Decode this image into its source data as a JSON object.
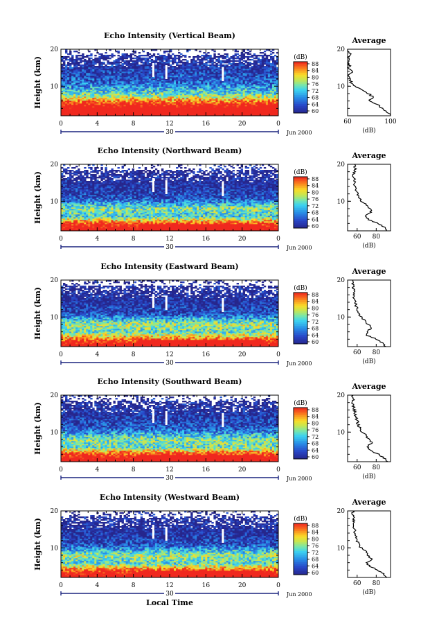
{
  "chart_data": [
    {
      "type": "heatmap",
      "title": "Echo Intensity (Vertical Beam)",
      "ylabel": "Height (km)",
      "xticks": [
        "0",
        "4",
        "8",
        "12",
        "16",
        "20",
        "0"
      ],
      "ylim": [
        2,
        20
      ],
      "yticks": [
        "10",
        "20"
      ],
      "colorbar": {
        "unit": "(dB)",
        "ticks": [
          "88",
          "84",
          "80",
          "76",
          "72",
          "68",
          "64",
          "60"
        ],
        "range": [
          60,
          88
        ]
      },
      "date_label": "30",
      "date_suffix": "Jun 2000",
      "layers_dB": {
        "heights": [
          2,
          5,
          8,
          11,
          14,
          17,
          20
        ],
        "values": [
          100,
          90,
          74,
          66,
          63,
          61,
          60
        ]
      },
      "average": {
        "title": "Average",
        "xlabel": "(dB)",
        "xticks": [
          "60",
          "100"
        ],
        "xlim": [
          60,
          100
        ],
        "yticks": [
          "10",
          "20"
        ],
        "heights": [
          2,
          3,
          4,
          5,
          6,
          7,
          8,
          9,
          10,
          11,
          12,
          13,
          14,
          15,
          16,
          17,
          18,
          19,
          20
        ],
        "values": [
          100,
          97,
          92,
          88,
          80,
          84,
          79,
          73,
          66,
          63,
          63,
          61,
          64,
          61,
          62,
          60,
          61,
          62,
          61
        ]
      }
    },
    {
      "type": "heatmap",
      "title": "Echo Intensity (Northward Beam)",
      "ylabel": "Height (km)",
      "xticks": [
        "0",
        "4",
        "8",
        "12",
        "16",
        "20",
        "0"
      ],
      "ylim": [
        2,
        20
      ],
      "yticks": [
        "10",
        "20"
      ],
      "colorbar": {
        "unit": "(dB)",
        "ticks": [
          "88",
          "84",
          "80",
          "76",
          "72",
          "68",
          "64",
          "60"
        ],
        "range": [
          60,
          88
        ]
      },
      "date_label": "30",
      "date_suffix": "Jun 2000",
      "layers_dB": {
        "heights": [
          2,
          4,
          6,
          8,
          11,
          14,
          17,
          20
        ],
        "values": [
          95,
          88,
          72,
          76,
          64,
          61,
          60,
          60
        ]
      },
      "average": {
        "title": "Average",
        "xlabel": "(dB)",
        "xticks": [
          "60",
          "80"
        ],
        "xlim": [
          50,
          95
        ],
        "yticks": [
          "10",
          "20"
        ],
        "heights": [
          2,
          3,
          4,
          5,
          6,
          7,
          8,
          9,
          10,
          11,
          12,
          13,
          14,
          15,
          16,
          17,
          18,
          19,
          20
        ],
        "values": [
          90,
          88,
          82,
          72,
          68,
          75,
          73,
          70,
          64,
          62,
          60,
          59,
          58,
          57,
          57,
          56,
          57,
          58,
          57
        ]
      }
    },
    {
      "type": "heatmap",
      "title": "Echo Intensity (Eastward Beam)",
      "ylabel": "Height (km)",
      "xticks": [
        "0",
        "4",
        "8",
        "12",
        "16",
        "20",
        "0"
      ],
      "ylim": [
        2,
        20
      ],
      "yticks": [
        "10",
        "20"
      ],
      "colorbar": {
        "unit": "(dB)",
        "ticks": [
          "88",
          "84",
          "80",
          "76",
          "72",
          "68",
          "64",
          "60"
        ],
        "range": [
          60,
          88
        ]
      },
      "date_label": "30",
      "date_suffix": "Jun 2000",
      "layers_dB": {
        "heights": [
          2,
          4,
          6,
          8,
          11,
          14,
          17,
          20
        ],
        "values": [
          95,
          86,
          74,
          77,
          64,
          61,
          60,
          60
        ]
      },
      "average": {
        "title": "Average",
        "xlabel": "(dB)",
        "xticks": [
          "60",
          "80"
        ],
        "xlim": [
          50,
          95
        ],
        "yticks": [
          "10",
          "20"
        ],
        "heights": [
          2,
          3,
          4,
          5,
          6,
          7,
          8,
          9,
          10,
          11,
          12,
          13,
          14,
          15,
          16,
          17,
          18,
          19,
          20
        ],
        "values": [
          90,
          87,
          81,
          71,
          70,
          75,
          72,
          68,
          64,
          62,
          60,
          59,
          58,
          57,
          56,
          57,
          56,
          55,
          56
        ]
      }
    },
    {
      "type": "heatmap",
      "title": "Echo Intensity (Southward Beam)",
      "ylabel": "Height (km)",
      "xticks": [
        "0",
        "4",
        "8",
        "12",
        "16",
        "20",
        "0"
      ],
      "ylim": [
        2,
        20
      ],
      "yticks": [
        "10",
        "20"
      ],
      "colorbar": {
        "unit": "(dB)",
        "ticks": [
          "88",
          "84",
          "80",
          "76",
          "72",
          "68",
          "64",
          "60"
        ],
        "range": [
          60,
          88
        ]
      },
      "date_label": "30",
      "date_suffix": "Jun 2000",
      "layers_dB": {
        "heights": [
          2,
          4,
          6,
          8,
          11,
          14,
          17,
          20
        ],
        "values": [
          95,
          88,
          74,
          76,
          65,
          62,
          60,
          60
        ]
      },
      "average": {
        "title": "Average",
        "xlabel": "(dB)",
        "xticks": [
          "60",
          "80"
        ],
        "xlim": [
          50,
          95
        ],
        "yticks": [
          "10",
          "20"
        ],
        "heights": [
          2,
          3,
          4,
          5,
          6,
          7,
          8,
          9,
          10,
          11,
          12,
          13,
          14,
          15,
          16,
          17,
          18,
          19,
          20
        ],
        "values": [
          92,
          88,
          83,
          74,
          70,
          76,
          72,
          70,
          65,
          63,
          61,
          60,
          59,
          58,
          57,
          56,
          55,
          56,
          55
        ]
      }
    },
    {
      "type": "heatmap",
      "title": "Echo Intensity (Westward Beam)",
      "ylabel": "Height (km)",
      "xticks": [
        "0",
        "4",
        "8",
        "12",
        "16",
        "20",
        "0"
      ],
      "ylim": [
        2,
        20
      ],
      "yticks": [
        "10",
        "20"
      ],
      "colorbar": {
        "unit": "(dB)",
        "ticks": [
          "88",
          "84",
          "80",
          "76",
          "72",
          "68",
          "64",
          "60"
        ],
        "range": [
          60,
          88
        ]
      },
      "date_label": "30",
      "date_suffix": "Jun 2000",
      "xlabel": "Local Time",
      "layers_dB": {
        "heights": [
          2,
          4,
          6,
          8,
          11,
          14,
          17,
          20
        ],
        "values": [
          95,
          87,
          73,
          77,
          64,
          61,
          60,
          60
        ]
      },
      "average": {
        "title": "Average",
        "xlabel": "(dB)",
        "xticks": [
          "60",
          "80"
        ],
        "xlim": [
          50,
          95
        ],
        "yticks": [
          "10",
          "20"
        ],
        "heights": [
          2,
          3,
          4,
          5,
          6,
          7,
          8,
          9,
          10,
          11,
          12,
          13,
          14,
          15,
          16,
          17,
          18,
          19,
          20
        ],
        "values": [
          91,
          87,
          82,
          73,
          69,
          76,
          71,
          69,
          64,
          62,
          60,
          59,
          58,
          57,
          56,
          57,
          56,
          55,
          56
        ]
      }
    }
  ]
}
